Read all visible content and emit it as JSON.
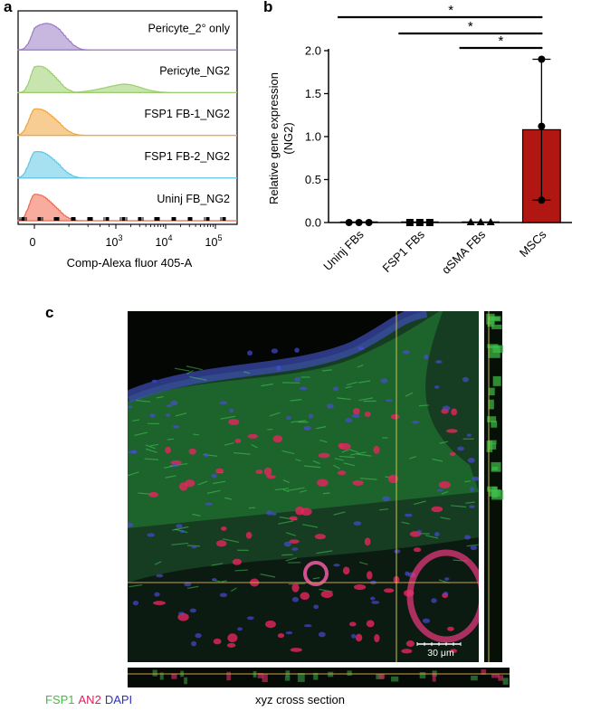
{
  "panels": {
    "a": "a",
    "b": "b",
    "c": "c"
  },
  "chart_data": [
    {
      "type": "area",
      "panel": "a",
      "xlabel": "Comp-Alexa fluor 405-A",
      "xscale": "biexponential",
      "x_tick_labels": [
        {
          "base": "0",
          "exp": ""
        },
        {
          "base": "10",
          "exp": "3"
        },
        {
          "base": "10",
          "exp": "4"
        },
        {
          "base": "10",
          "exp": "5"
        }
      ],
      "x_tick_values": [
        0,
        1000,
        10000,
        100000
      ],
      "series": [
        {
          "name": "Pericyte_2° only",
          "color": "#9b7bc4",
          "peak": 60,
          "spread": 140,
          "shoulder": 0
        },
        {
          "name": "Pericyte_NG2",
          "color": "#9bcf6d",
          "peak": 20,
          "spread": 120,
          "shoulder": 1500
        },
        {
          "name": "FSP1 FB-1_NG2",
          "color": "#f2a43a",
          "peak": 10,
          "spread": 140,
          "shoulder": 0
        },
        {
          "name": "FSP1 FB-2_NG2",
          "color": "#5ec6e6",
          "peak": 15,
          "spread": 140,
          "shoulder": 0
        },
        {
          "name": "Uninj FB_NG2",
          "color": "#f0684f",
          "peak": 5,
          "spread": 130,
          "shoulder": 0
        }
      ]
    },
    {
      "type": "bar",
      "panel": "b",
      "categories": [
        "Uninj FBs",
        "FSP1 FBs",
        "αSMA FBs",
        "MSCs"
      ],
      "values": [
        0.0,
        0.0,
        0.0,
        1.08
      ],
      "errors_upper": [
        0,
        0,
        0,
        0.82
      ],
      "errors_lower": [
        0,
        0,
        0,
        0.82
      ],
      "points": [
        [
          0.0,
          0.0,
          0.0
        ],
        [
          0.0,
          0.0,
          0.0
        ],
        [
          0.0,
          0.0,
          0.0
        ],
        [
          1.9,
          1.12,
          0.26
        ]
      ],
      "markers": [
        "circle",
        "square",
        "triangle",
        "circle"
      ],
      "bar_color": "#b01712",
      "ylabel_line1": "Relative gene expression",
      "ylabel_line2": "(NG2)",
      "ylim": [
        0,
        2.0
      ],
      "yticks": [
        "0.0",
        "0.5",
        "1.0",
        "1.5",
        "2.0"
      ],
      "significance": [
        {
          "from": 0,
          "to": 3,
          "label": "*"
        },
        {
          "from": 1,
          "to": 3,
          "label": "*"
        },
        {
          "from": 2,
          "to": 3,
          "label": "*"
        }
      ]
    }
  ],
  "microscopy": {
    "scale_bar": "30 μm",
    "legend": [
      {
        "text": "FSP1",
        "color": "#3fbf3f"
      },
      {
        "text": "AN2",
        "color": "#e0205a"
      },
      {
        "text": "DAPI",
        "color": "#3030c0"
      }
    ],
    "caption": "xyz cross section"
  }
}
